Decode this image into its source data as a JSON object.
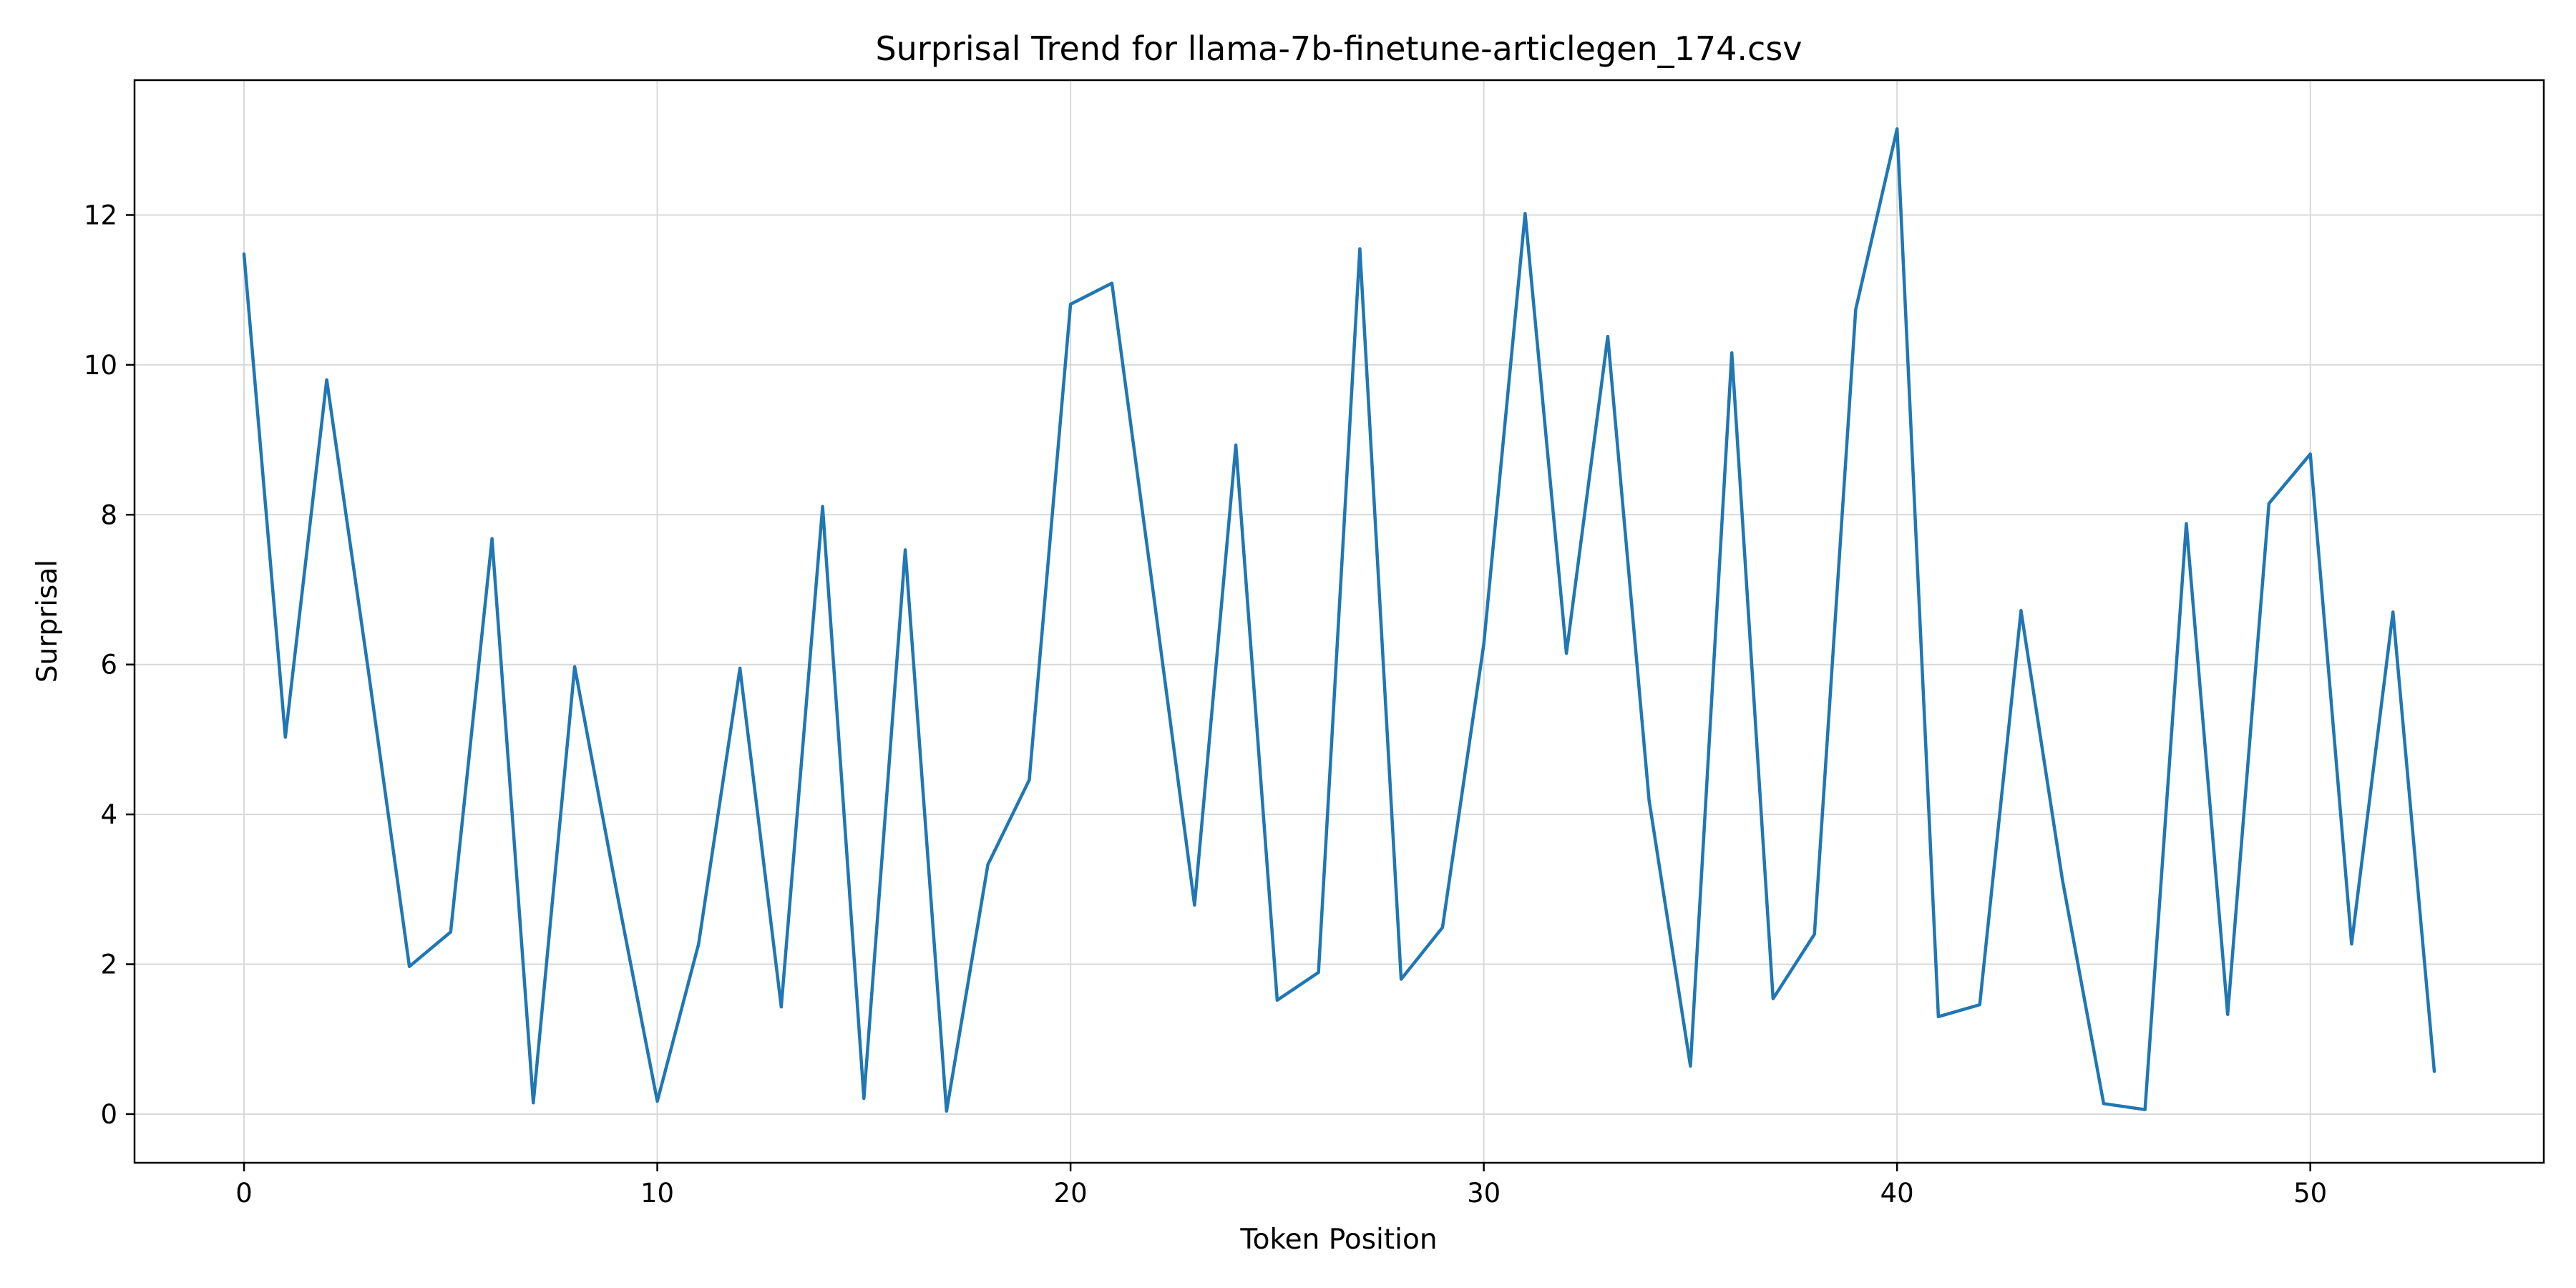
{
  "chart_data": {
    "type": "line",
    "title": "Surprisal Trend for llama-7b-finetune-articlegen_174.csv",
    "xlabel": "Token Position",
    "ylabel": "Surprisal",
    "xlim": [
      -2.65,
      55.65
    ],
    "ylim": [
      -0.65,
      13.8
    ],
    "xticks": [
      0,
      10,
      20,
      30,
      40,
      50
    ],
    "yticks": [
      0,
      2,
      4,
      6,
      8,
      10,
      12
    ],
    "grid": true,
    "legend": "none",
    "series": [
      {
        "color": "#1f77b4",
        "x": [
          0,
          1,
          2,
          3,
          4,
          5,
          6,
          7,
          8,
          9,
          10,
          11,
          12,
          13,
          14,
          15,
          16,
          17,
          18,
          19,
          20,
          21,
          22,
          23,
          24,
          25,
          26,
          27,
          28,
          29,
          30,
          31,
          32,
          33,
          34,
          35,
          36,
          37,
          38,
          39,
          40,
          41,
          42,
          43,
          44,
          45,
          46,
          47,
          48,
          49,
          50,
          51,
          52,
          53
        ],
        "y": [
          11.48,
          5.03,
          9.8,
          5.95,
          1.97,
          2.43,
          7.68,
          0.15,
          5.97,
          3.02,
          0.17,
          2.27,
          5.95,
          1.43,
          8.11,
          0.21,
          7.53,
          0.04,
          3.33,
          4.46,
          10.81,
          11.09,
          6.97,
          2.79,
          8.93,
          1.52,
          1.89,
          11.55,
          1.8,
          2.49,
          6.27,
          12.02,
          6.15,
          10.38,
          4.19,
          0.64,
          10.16,
          1.54,
          2.4,
          10.74,
          13.15,
          1.3,
          1.46,
          6.72,
          3.13,
          0.14,
          0.06,
          7.88,
          1.33,
          8.15,
          8.81,
          2.27,
          6.7,
          0.57
        ]
      }
    ]
  }
}
